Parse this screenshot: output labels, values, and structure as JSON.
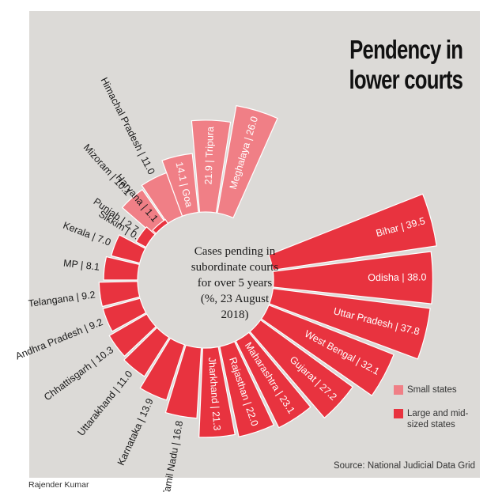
{
  "title": [
    "Pendency in",
    "lower courts"
  ],
  "center_text": [
    "Cases pending in",
    "subordinate courts",
    "for over 5 years",
    "(%, 23 August",
    "2018)"
  ],
  "legend": [
    {
      "label": "Small states",
      "color": "#f07f86"
    },
    {
      "label": "Large and mid-sized states",
      "color": "#e8333f"
    }
  ],
  "source": "Source: National Judicial Data Grid",
  "credit": "Rajender Kumar",
  "chart_data": {
    "type": "radial-bar",
    "unit": "%",
    "series": [
      {
        "name": "Small states",
        "color": "#f07f86",
        "items": [
          {
            "label": "Sikkim",
            "value": 0.4
          },
          {
            "label": "Mizoram",
            "value": 10.1
          },
          {
            "label": "Himachal Pradesh",
            "value": 11.0
          },
          {
            "label": "Goa",
            "value": 14.1
          },
          {
            "label": "Tripura",
            "value": 21.9
          },
          {
            "label": "Meghalaya",
            "value": 26.0
          }
        ]
      },
      {
        "name": "Large and mid-sized states",
        "color": "#e8333f",
        "items": [
          {
            "label": "Bihar",
            "value": 39.5
          },
          {
            "label": "Odisha",
            "value": 38.0
          },
          {
            "label": "Uttar Pradesh",
            "value": 37.8
          },
          {
            "label": "West Bengal",
            "value": 32.1
          },
          {
            "label": "Gujarat",
            "value": 27.2
          },
          {
            "label": "Maharashtra",
            "value": 23.1
          },
          {
            "label": "Rajasthan",
            "value": 22.0
          },
          {
            "label": "Jharkhand",
            "value": 21.3
          },
          {
            "label": "Tamil Nadu",
            "value": 16.8
          },
          {
            "label": "Karnataka",
            "value": 13.9
          },
          {
            "label": "Uttarakhand",
            "value": 11.0
          },
          {
            "label": "Chhattisgarh",
            "value": 10.3
          },
          {
            "label": "Andhra Pradesh",
            "value": 9.2
          },
          {
            "label": "Telangana",
            "value": 9.2
          },
          {
            "label": "MP",
            "value": 8.1
          },
          {
            "label": "Kerala",
            "value": 7.0
          },
          {
            "label": "Punjab",
            "value": 2.7
          },
          {
            "label": "Haryana",
            "value": 1.1
          }
        ]
      }
    ],
    "labels_display": {
      "Sikkim": "Sikkim | 0.4",
      "Mizoram": "Mizoram | 10.1",
      "Himachal Pradesh": "Himachal Pradesh | 11.0",
      "Goa": "14.1 | Goa",
      "Tripura": "21.9 | Tripura",
      "Meghalaya": "Meghalaya | 26.0",
      "Bihar": "Bihar | 39.5",
      "Odisha": "Odisha | 38.0",
      "Uttar Pradesh": "Uttar Pradesh | 37.8",
      "West Bengal": "West Bengal | 32.1",
      "Gujarat": "Gujarat | 27.2",
      "Maharashtra": "Maharashtra | 23.1",
      "Rajasthan": "Rajasthan | 22.0",
      "Jharkhand": "Jharkhand | 21.3",
      "Tamil Nadu": "Tamil Nadu | 16.8",
      "Karnataka": "Karnataka | 13.9",
      "Uttarakhand": "Uttarakhand | 11.0",
      "Chhattisgarh": "Chhattisgarh | 10.3",
      "Andhra Pradesh": "Andhra Pradesh | 9.2",
      "Telangana": "Telangana | 9.2",
      "MP": "MP | 8.1",
      "Kerala": "Kerala | 7.0",
      "Punjab": "Punjab | 2.7",
      "Haryana": "Haryana | 1.1"
    }
  }
}
